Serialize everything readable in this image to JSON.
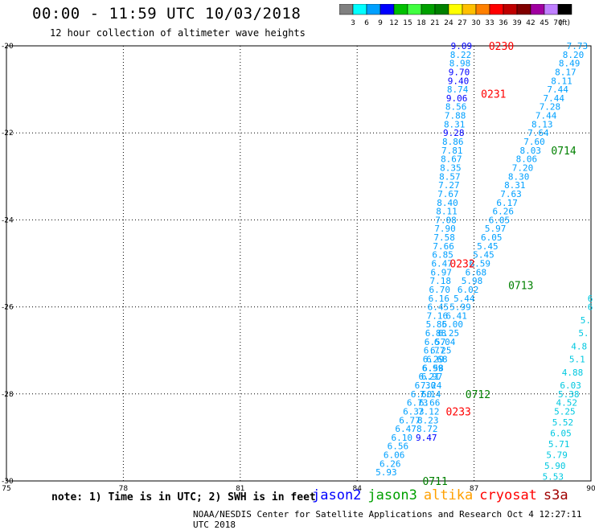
{
  "header": {
    "title": "00:00 - 11:59 UTC 10/03/2018",
    "subtitle": "12 hour collection of altimeter wave heights"
  },
  "colorbar": {
    "unit_label": "(ft)",
    "ticks": [
      "3",
      "6",
      "9",
      "12",
      "15",
      "18",
      "21",
      "24",
      "27",
      "30",
      "33",
      "36",
      "39",
      "42",
      "45",
      "70"
    ],
    "colors": [
      "#808080",
      "#00ffff",
      "#00a0ff",
      "#0000ff",
      "#00c000",
      "#40ff40",
      "#00a000",
      "#008000",
      "#ffff00",
      "#ffc000",
      "#ff8000",
      "#ff0000",
      "#c00000",
      "#800000",
      "#a000a0",
      "#c080ff",
      "#000000"
    ]
  },
  "footer": {
    "note": "note: 1) Time is in UTC; 2) SWH is in feet",
    "credit": "NOAA/NESDIS Center for Satellite Applications and Research   Oct  4 12:27:11 UTC 2018",
    "satellites": [
      {
        "name": "jason2",
        "color": "#0000ff"
      },
      {
        "name": "jason3",
        "color": "#00a000"
      },
      {
        "name": "altika",
        "color": "#ffa000"
      },
      {
        "name": "cryosat",
        "color": "#ff0000"
      },
      {
        "name": "s3a",
        "color": "#a00000"
      }
    ]
  },
  "chart_data": {
    "type": "scatter",
    "xlim": [
      75,
      90
    ],
    "ylim": [
      -30,
      -20
    ],
    "xticks": [
      "75",
      "78",
      "81",
      "84",
      "87",
      "90"
    ],
    "yticks": [
      "-20",
      "-22",
      "-24",
      "-26",
      "-28",
      "-30"
    ],
    "grid": true,
    "track_labels": [
      {
        "text": "0230",
        "x": 87.7,
        "y": -20.0,
        "color": "#ff0000"
      },
      {
        "text": "0231",
        "x": 87.5,
        "y": -21.1,
        "color": "#ff0000"
      },
      {
        "text": "0714",
        "x": 89.3,
        "y": -22.4,
        "color": "#008000"
      },
      {
        "text": "0232",
        "x": 86.7,
        "y": -25.0,
        "color": "#ff0000"
      },
      {
        "text": "0713",
        "x": 88.2,
        "y": -25.5,
        "color": "#008000"
      },
      {
        "text": "0712",
        "x": 87.1,
        "y": -28.0,
        "color": "#008000"
      },
      {
        "text": "0233",
        "x": 86.6,
        "y": -28.4,
        "color": "#ff0000"
      },
      {
        "text": "0711",
        "x": 86.0,
        "y": -30.0,
        "color": "#008000"
      }
    ],
    "series": [
      {
        "name": "0230",
        "color": "#00a0ff",
        "points": [
          {
            "x": 86.95,
            "y": -20.0,
            "v": "9.09",
            "color": "#0000ff"
          },
          {
            "x": 86.93,
            "y": -20.2,
            "v": "8.22"
          },
          {
            "x": 86.91,
            "y": -20.4,
            "v": "8.98"
          },
          {
            "x": 86.89,
            "y": -20.6,
            "v": "9.70",
            "color": "#0000ff"
          },
          {
            "x": 86.87,
            "y": -20.8,
            "v": "9.40",
            "color": "#0000ff"
          },
          {
            "x": 86.85,
            "y": -21.0,
            "v": "8.74"
          },
          {
            "x": 86.83,
            "y": -21.2,
            "v": "9.06",
            "color": "#0000ff"
          },
          {
            "x": 86.81,
            "y": -21.4,
            "v": "8.56"
          },
          {
            "x": 86.79,
            "y": -21.6,
            "v": "7.88"
          },
          {
            "x": 86.77,
            "y": -21.8,
            "v": "8.31"
          },
          {
            "x": 86.75,
            "y": -22.0,
            "v": "9.28",
            "color": "#0000ff"
          },
          {
            "x": 86.73,
            "y": -22.2,
            "v": "8.86"
          },
          {
            "x": 86.71,
            "y": -22.4,
            "v": "7.81"
          },
          {
            "x": 86.69,
            "y": -22.6,
            "v": "8.67"
          },
          {
            "x": 86.67,
            "y": -22.8,
            "v": "8.35"
          },
          {
            "x": 86.65,
            "y": -23.0,
            "v": "8.57"
          },
          {
            "x": 86.63,
            "y": -23.2,
            "v": "7.27"
          },
          {
            "x": 86.61,
            "y": -23.4,
            "v": "7.67"
          },
          {
            "x": 86.59,
            "y": -23.6,
            "v": "8.40"
          },
          {
            "x": 86.57,
            "y": -23.8,
            "v": "8.11"
          },
          {
            "x": 86.55,
            "y": -24.0,
            "v": "7.08"
          },
          {
            "x": 86.53,
            "y": -24.2,
            "v": "7.90"
          },
          {
            "x": 86.51,
            "y": -24.4,
            "v": "7.58"
          },
          {
            "x": 86.49,
            "y": -24.6,
            "v": "7.66"
          },
          {
            "x": 86.47,
            "y": -24.8,
            "v": "6.85"
          },
          {
            "x": 86.45,
            "y": -25.0,
            "v": "6.47"
          },
          {
            "x": 86.43,
            "y": -25.2,
            "v": "6.97"
          },
          {
            "x": 86.41,
            "y": -25.4,
            "v": "7.18"
          },
          {
            "x": 86.39,
            "y": -25.6,
            "v": "6.70"
          },
          {
            "x": 86.37,
            "y": -25.8,
            "v": "6.16"
          },
          {
            "x": 86.35,
            "y": -26.0,
            "v": "6.45"
          },
          {
            "x": 86.33,
            "y": -26.2,
            "v": "7.16"
          },
          {
            "x": 86.31,
            "y": -26.4,
            "v": "5.85"
          },
          {
            "x": 86.29,
            "y": -26.6,
            "v": "6.88"
          },
          {
            "x": 86.27,
            "y": -26.8,
            "v": "6.57"
          },
          {
            "x": 86.25,
            "y": -27.0,
            "v": "6.77"
          },
          {
            "x": 86.23,
            "y": -27.2,
            "v": "6.29"
          },
          {
            "x": 86.21,
            "y": -27.4,
            "v": "6.99"
          },
          {
            "x": 86.19,
            "y": -27.6,
            "v": "6.97"
          },
          {
            "x": 86.17,
            "y": -27.8,
            "v": "7.24"
          },
          {
            "x": 86.15,
            "y": -28.0,
            "v": "7.14"
          },
          {
            "x": 86.13,
            "y": -28.2,
            "v": "6.66"
          },
          {
            "x": 86.11,
            "y": -28.4,
            "v": "7.12"
          },
          {
            "x": 86.09,
            "y": -28.6,
            "v": "8.23"
          },
          {
            "x": 86.07,
            "y": -28.8,
            "v": "8.72"
          },
          {
            "x": 86.05,
            "y": -29.0,
            "v": "9.47",
            "color": "#0000ff"
          }
        ]
      },
      {
        "name": "0231",
        "color": "#00a0ff",
        "points": [
          {
            "x": 89.92,
            "y": -20.0,
            "v": "7.73"
          },
          {
            "x": 89.82,
            "y": -20.2,
            "v": "8.20"
          },
          {
            "x": 89.72,
            "y": -20.4,
            "v": "8.49"
          },
          {
            "x": 89.62,
            "y": -20.6,
            "v": "8.17"
          },
          {
            "x": 89.52,
            "y": -20.8,
            "v": "8.11"
          },
          {
            "x": 89.42,
            "y": -21.0,
            "v": "7.44"
          },
          {
            "x": 89.32,
            "y": -21.2,
            "v": "7.44"
          },
          {
            "x": 89.22,
            "y": -21.4,
            "v": "7.28"
          },
          {
            "x": 89.12,
            "y": -21.6,
            "v": "7.44"
          },
          {
            "x": 89.02,
            "y": -21.8,
            "v": "8.13"
          },
          {
            "x": 88.92,
            "y": -22.0,
            "v": "7.64"
          },
          {
            "x": 88.82,
            "y": -22.2,
            "v": "7.60"
          },
          {
            "x": 88.72,
            "y": -22.4,
            "v": "8.03"
          },
          {
            "x": 88.62,
            "y": -22.6,
            "v": "8.06"
          },
          {
            "x": 88.52,
            "y": -22.8,
            "v": "7.20"
          },
          {
            "x": 88.42,
            "y": -23.0,
            "v": "8.30"
          },
          {
            "x": 88.32,
            "y": -23.2,
            "v": "8.31"
          },
          {
            "x": 88.22,
            "y": -23.4,
            "v": "7.63"
          },
          {
            "x": 88.12,
            "y": -23.6,
            "v": "6.17"
          },
          {
            "x": 88.02,
            "y": -23.8,
            "v": "6.26"
          },
          {
            "x": 87.92,
            "y": -24.0,
            "v": "6.05"
          },
          {
            "x": 87.82,
            "y": -24.2,
            "v": "5.97"
          },
          {
            "x": 87.72,
            "y": -24.4,
            "v": "6.05"
          },
          {
            "x": 87.62,
            "y": -24.6,
            "v": "5.45"
          },
          {
            "x": 87.52,
            "y": -24.8,
            "v": "5.45"
          },
          {
            "x": 87.42,
            "y": -25.0,
            "v": "6.59"
          },
          {
            "x": 87.32,
            "y": -25.2,
            "v": "6.68"
          },
          {
            "x": 87.22,
            "y": -25.4,
            "v": "5.98"
          },
          {
            "x": 87.12,
            "y": -25.6,
            "v": "6.02"
          },
          {
            "x": 87.02,
            "y": -25.8,
            "v": "5.44"
          },
          {
            "x": 86.92,
            "y": -26.0,
            "v": "5.99"
          },
          {
            "x": 86.82,
            "y": -26.2,
            "v": "6.41"
          },
          {
            "x": 86.72,
            "y": -26.4,
            "v": "6.00"
          },
          {
            "x": 86.62,
            "y": -26.6,
            "v": "6.25"
          },
          {
            "x": 86.52,
            "y": -26.8,
            "v": "6.04"
          },
          {
            "x": 86.42,
            "y": -27.0,
            "v": "6.25"
          },
          {
            "x": 86.32,
            "y": -27.2,
            "v": "6.68"
          },
          {
            "x": 86.22,
            "y": -27.4,
            "v": "6.58"
          },
          {
            "x": 86.12,
            "y": -27.6,
            "v": "6.21"
          },
          {
            "x": 86.02,
            "y": -27.8,
            "v": "6.30"
          },
          {
            "x": 85.92,
            "y": -28.0,
            "v": "6.60"
          },
          {
            "x": 85.82,
            "y": -28.2,
            "v": "6.73"
          },
          {
            "x": 85.72,
            "y": -28.4,
            "v": "6.33"
          },
          {
            "x": 85.62,
            "y": -28.6,
            "v": "6.77"
          },
          {
            "x": 85.52,
            "y": -28.8,
            "v": "6.47"
          },
          {
            "x": 85.42,
            "y": -29.0,
            "v": "6.10"
          },
          {
            "x": 85.32,
            "y": -29.2,
            "v": "6.56"
          },
          {
            "x": 85.22,
            "y": -29.4,
            "v": "6.06"
          },
          {
            "x": 85.12,
            "y": -29.6,
            "v": "6.26"
          },
          {
            "x": 85.02,
            "y": -29.8,
            "v": "5.93"
          }
        ]
      },
      {
        "name": "0233",
        "color": "#00c8e0",
        "points": [
          {
            "x": 90.05,
            "y": -25.8,
            "v": "6"
          },
          {
            "x": 90.05,
            "y": -26.0,
            "v": "6"
          },
          {
            "x": 90.0,
            "y": -26.3,
            "v": "5."
          },
          {
            "x": 89.95,
            "y": -26.6,
            "v": "5."
          },
          {
            "x": 89.9,
            "y": -26.9,
            "v": "4.8"
          },
          {
            "x": 89.85,
            "y": -27.2,
            "v": "5.1"
          },
          {
            "x": 89.8,
            "y": -27.5,
            "v": "4.88"
          },
          {
            "x": 89.75,
            "y": -27.8,
            "v": "6.03"
          },
          {
            "x": 89.7,
            "y": -28.0,
            "v": "5.38"
          },
          {
            "x": 89.65,
            "y": -28.2,
            "v": "4.52"
          },
          {
            "x": 89.6,
            "y": -28.4,
            "v": "5.25"
          },
          {
            "x": 89.55,
            "y": -28.65,
            "v": "5.52"
          },
          {
            "x": 89.5,
            "y": -28.9,
            "v": "6.05"
          },
          {
            "x": 89.45,
            "y": -29.15,
            "v": "5.71"
          },
          {
            "x": 89.4,
            "y": -29.4,
            "v": "5.79"
          },
          {
            "x": 89.35,
            "y": -29.65,
            "v": "5.90"
          },
          {
            "x": 89.3,
            "y": -29.9,
            "v": "5.53"
          }
        ]
      }
    ]
  }
}
